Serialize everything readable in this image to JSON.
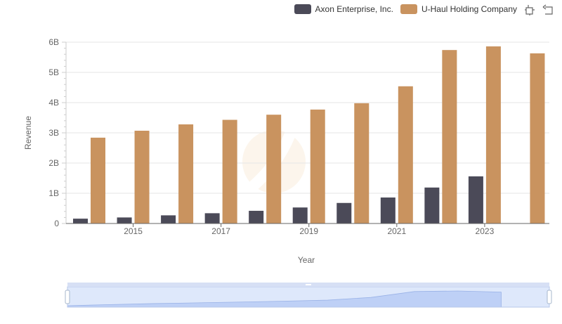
{
  "chart_data": {
    "type": "bar",
    "categories": [
      "2014",
      "2015",
      "2016",
      "2017",
      "2018",
      "2019",
      "2020",
      "2021",
      "2022",
      "2023",
      "2024"
    ],
    "series": [
      {
        "name": "Axon Enterprise, Inc.",
        "color": "#4b4a58",
        "values": [
          0.16,
          0.2,
          0.27,
          0.34,
          0.42,
          0.53,
          0.68,
          0.86,
          1.19,
          1.56,
          null
        ]
      },
      {
        "name": "U-Haul Holding Company",
        "color": "#c9935f",
        "values": [
          2.84,
          3.07,
          3.28,
          3.43,
          3.6,
          3.77,
          3.98,
          4.54,
          5.74,
          5.86,
          5.63
        ]
      }
    ],
    "xlabel": "Year",
    "ylabel": "Revenue",
    "ylim": [
      0,
      6
    ],
    "yticks": [
      0,
      1,
      2,
      3,
      4,
      5,
      6
    ],
    "ytick_labels": [
      "0",
      "1B",
      "2B",
      "3B",
      "4B",
      "5B",
      "6B"
    ],
    "xtick_labels": [
      "2015",
      "2017",
      "2019",
      "2021",
      "2023"
    ],
    "grid": true,
    "legend_position": "top-right"
  },
  "toolbar": {
    "icons": [
      "restore-icon",
      "back-icon"
    ]
  },
  "data_zoom": {
    "range_start_percent": 0,
    "range_end_percent": 100
  }
}
